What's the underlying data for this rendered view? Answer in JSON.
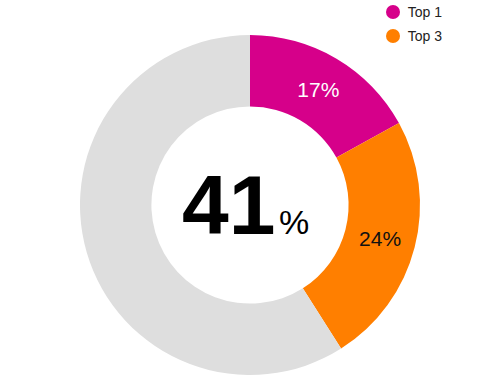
{
  "chart_data": {
    "type": "pie",
    "categories": [
      "Top 1",
      "Top 3",
      null
    ],
    "values": [
      17,
      24,
      59
    ],
    "value_labels": [
      "17%",
      "24%",
      null
    ],
    "colors": [
      "#d6008a",
      "#ff7f00",
      "#dedede"
    ],
    "data_labels": true,
    "legend": "top right",
    "annotations": [
      {
        "text": "41%"
      }
    ]
  }
}
